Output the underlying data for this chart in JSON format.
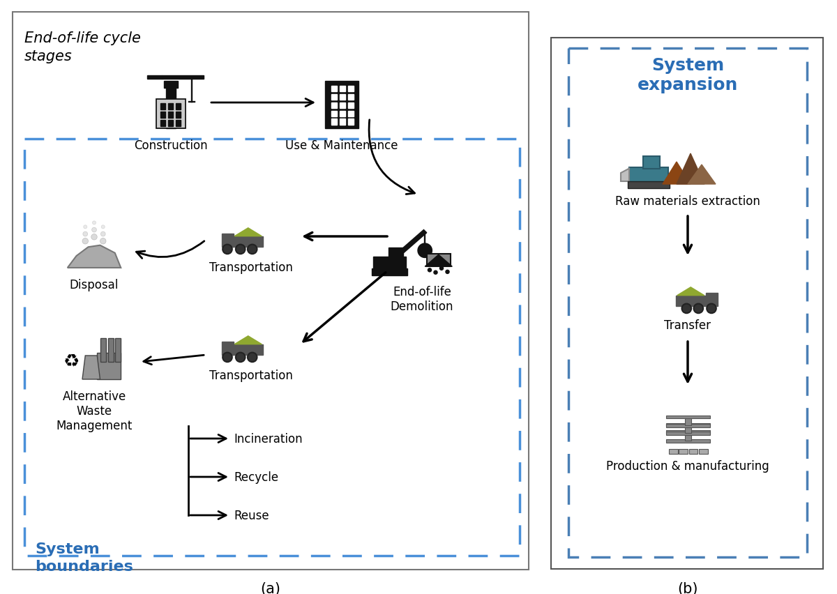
{
  "bg_color": "#ffffff",
  "outer_box_color": "#666666",
  "dashed_box_color": "#4a90d9",
  "right_box_solid_color": "#555555",
  "right_dashed_color": "#4a7fb5",
  "title_italic_text": "End-of-life cycle\nstages",
  "label_construction": "Construction",
  "label_use": "Use & Maintenance",
  "label_demolition": "End-of-life\nDemolition",
  "label_disposal": "Disposal",
  "label_transport1": "Transportation",
  "label_transport2": "Transportation",
  "label_alt_waste": "Alternative\nWaste\nManagement",
  "label_incineration": "Incineration",
  "label_recycle": "Recycle",
  "label_reuse": "Reuse",
  "label_system_boundaries": "System\nboundaries",
  "label_system_expansion": "System\nexpansion",
  "label_raw_materials": "Raw materials extraction",
  "label_transfer": "Transfer",
  "label_production": "Production & manufacturing",
  "label_a": "(a)",
  "label_b": "(b)",
  "system_boundaries_color": "#2a6db5",
  "system_expansion_color": "#2a6db5",
  "arrow_color": "#000000",
  "text_color": "#000000",
  "icon_color": "#1a1a1a",
  "truck_body_color": "#555555",
  "truck_load_color": "#c8c800",
  "truck_load_color2": "#8fa830"
}
